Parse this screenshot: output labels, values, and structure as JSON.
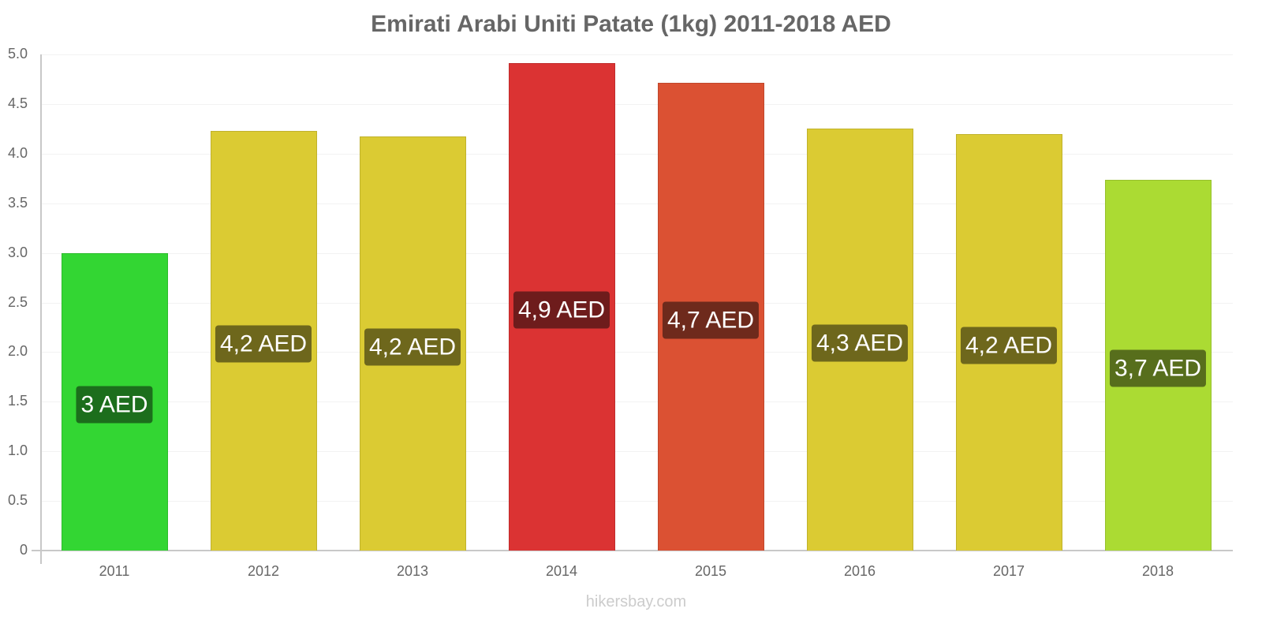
{
  "chart": {
    "title": "Emirati Arabi Uniti Patate (1kg) 2011-2018 AED",
    "footer": "hikersbay.com"
  },
  "colors": {
    "title_text": "#666666",
    "axis_text": "#666666",
    "axis_line": "#c8c8c8",
    "gridline": "#f2f2f2",
    "footer_text": "#cccccc"
  },
  "chart_data": {
    "type": "bar",
    "title": "Emirati Arabi Uniti Patate (1kg) 2011-2018 AED",
    "xlabel": "",
    "ylabel": "",
    "ylim": [
      0,
      5.0
    ],
    "yticks": [
      "0",
      "0.5",
      "1.0",
      "1.5",
      "2.0",
      "2.5",
      "3.0",
      "3.5",
      "4.0",
      "4.5",
      "5.0"
    ],
    "grid": true,
    "legend": null,
    "categories": [
      "2011",
      "2012",
      "2013",
      "2014",
      "2015",
      "2016",
      "2017",
      "2018"
    ],
    "values": [
      3.0,
      4.23,
      4.17,
      4.91,
      4.71,
      4.25,
      4.2,
      3.74
    ],
    "data_labels": [
      "3 AED",
      "4,2 AED",
      "4,2 AED",
      "4,9 AED",
      "4,7 AED",
      "4,3 AED",
      "4,2 AED",
      "3,7 AED"
    ],
    "bar_colors": [
      "#33d633",
      "#dbcb33",
      "#dbcb33",
      "#db3333",
      "#db5133",
      "#dbcb33",
      "#dbcb33",
      "#abdb33"
    ],
    "label_bg_colors": [
      "#1c6e1c",
      "#6e671c",
      "#6e671c",
      "#6e1c1c",
      "#6e2a1c",
      "#6e671c",
      "#6e671c",
      "#576e1c"
    ]
  }
}
